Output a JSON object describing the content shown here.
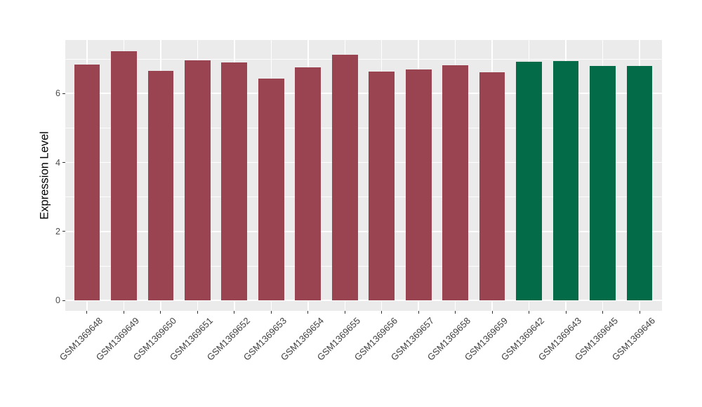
{
  "chart_data": {
    "type": "bar",
    "title": "",
    "xlabel": "",
    "ylabel": "Expression Level",
    "categories": [
      "GSM1369648",
      "GSM1369649",
      "GSM1369650",
      "GSM1369651",
      "GSM1369652",
      "GSM1369653",
      "GSM1369654",
      "GSM1369655",
      "GSM1369656",
      "GSM1369657",
      "GSM1369658",
      "GSM1369659",
      "GSM1369642",
      "GSM1369643",
      "GSM1369645",
      "GSM1369646"
    ],
    "values": [
      6.84,
      7.22,
      6.65,
      6.96,
      6.9,
      6.43,
      6.76,
      7.13,
      6.63,
      6.69,
      6.82,
      6.61,
      6.92,
      6.94,
      6.8,
      6.8
    ],
    "bar_colors": [
      "#9B4451",
      "#9B4451",
      "#9B4451",
      "#9B4451",
      "#9B4451",
      "#9B4451",
      "#9B4451",
      "#9B4451",
      "#9B4451",
      "#9B4451",
      "#9B4451",
      "#9B4451",
      "#046B49",
      "#046B49",
      "#046B49",
      "#046B49"
    ],
    "group_colors": {
      "left_group": "#9B4451",
      "right_group": "#046B49"
    },
    "y_ticks": [
      0,
      2,
      4,
      6
    ],
    "y_minor_ticks": [
      1,
      3,
      5,
      7
    ],
    "ylim": [
      -0.3,
      7.56
    ],
    "grid": "on",
    "legend": "none",
    "panel_background": "#EBEBEB",
    "grid_color": "#FFFFFF"
  }
}
